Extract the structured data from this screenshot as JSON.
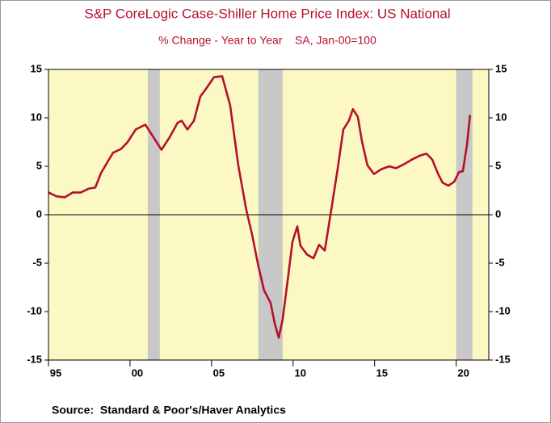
{
  "chart_data": {
    "type": "line",
    "title": "S&P CoreLogic Case-Shiller Home Price Index: US National",
    "subtitle": "% Change - Year to Year    SA, Jan-00=100",
    "source": "Source:  Standard & Poor's/Haver Analytics",
    "x": [
      1995.0,
      1995.5,
      1996.0,
      1996.49,
      1996.98,
      1997.48,
      1997.87,
      1998.22,
      1998.71,
      1998.96,
      1999.46,
      1999.85,
      2000.35,
      2000.94,
      2001.44,
      2001.93,
      2002.43,
      2002.92,
      2003.17,
      2003.52,
      2003.92,
      2004.31,
      2004.66,
      2005.15,
      2005.65,
      2006.14,
      2006.64,
      2007.13,
      2007.48,
      2007.87,
      2008.22,
      2008.62,
      2008.87,
      2009.12,
      2009.36,
      2009.71,
      2009.96,
      2010.26,
      2010.45,
      2010.85,
      2011.25,
      2011.59,
      2011.94,
      2012.34,
      2012.73,
      2013.08,
      2013.42,
      2013.67,
      2013.97,
      2014.22,
      2014.56,
      2014.96,
      2015.41,
      2015.9,
      2016.3,
      2016.79,
      2017.29,
      2017.78,
      2018.18,
      2018.53,
      2018.87,
      2019.17,
      2019.52,
      2019.88,
      2020.17,
      2020.41,
      2020.66,
      2020.85
    ],
    "series": [
      {
        "color": "#b5102c",
        "values": [
          2.3,
          1.9,
          1.8,
          2.3,
          2.3,
          2.7,
          2.8,
          4.3,
          5.7,
          6.4,
          6.8,
          7.5,
          8.8,
          9.3,
          8.0,
          6.7,
          8.0,
          9.5,
          9.7,
          8.8,
          9.7,
          12.2,
          13.0,
          14.2,
          14.3,
          11.3,
          5.1,
          0.5,
          -2.0,
          -5.3,
          -7.8,
          -9.1,
          -11.2,
          -12.7,
          -10.8,
          -6.2,
          -2.8,
          -1.2,
          -3.2,
          -4.1,
          -4.5,
          -3.1,
          -3.7,
          0.5,
          4.7,
          8.8,
          9.7,
          10.9,
          10.1,
          7.6,
          5.1,
          4.2,
          4.7,
          5.0,
          4.8,
          5.2,
          5.7,
          6.1,
          6.3,
          5.7,
          4.3,
          3.3,
          3.0,
          3.4,
          4.4,
          4.5,
          7.2,
          10.3
        ]
      }
    ],
    "shading": [
      [
        2001.09,
        2001.83
      ],
      [
        2007.87,
        2009.36
      ],
      [
        2020.0,
        2021.0
      ]
    ],
    "shading_color": "#c8c8c8",
    "plot_background": "#fcf8c4",
    "xlim": [
      1995,
      2022
    ],
    "xticks": [
      {
        "value": 1995,
        "label": "95"
      },
      {
        "value": 2000,
        "label": "00"
      },
      {
        "value": 2005,
        "label": "05"
      },
      {
        "value": 2010,
        "label": "10"
      },
      {
        "value": 2015,
        "label": "15"
      },
      {
        "value": 2020,
        "label": "20"
      }
    ],
    "ylim": [
      -15,
      15
    ],
    "yticks": [
      -15,
      -10,
      -5,
      0,
      5,
      10,
      15
    ],
    "grid": false
  }
}
